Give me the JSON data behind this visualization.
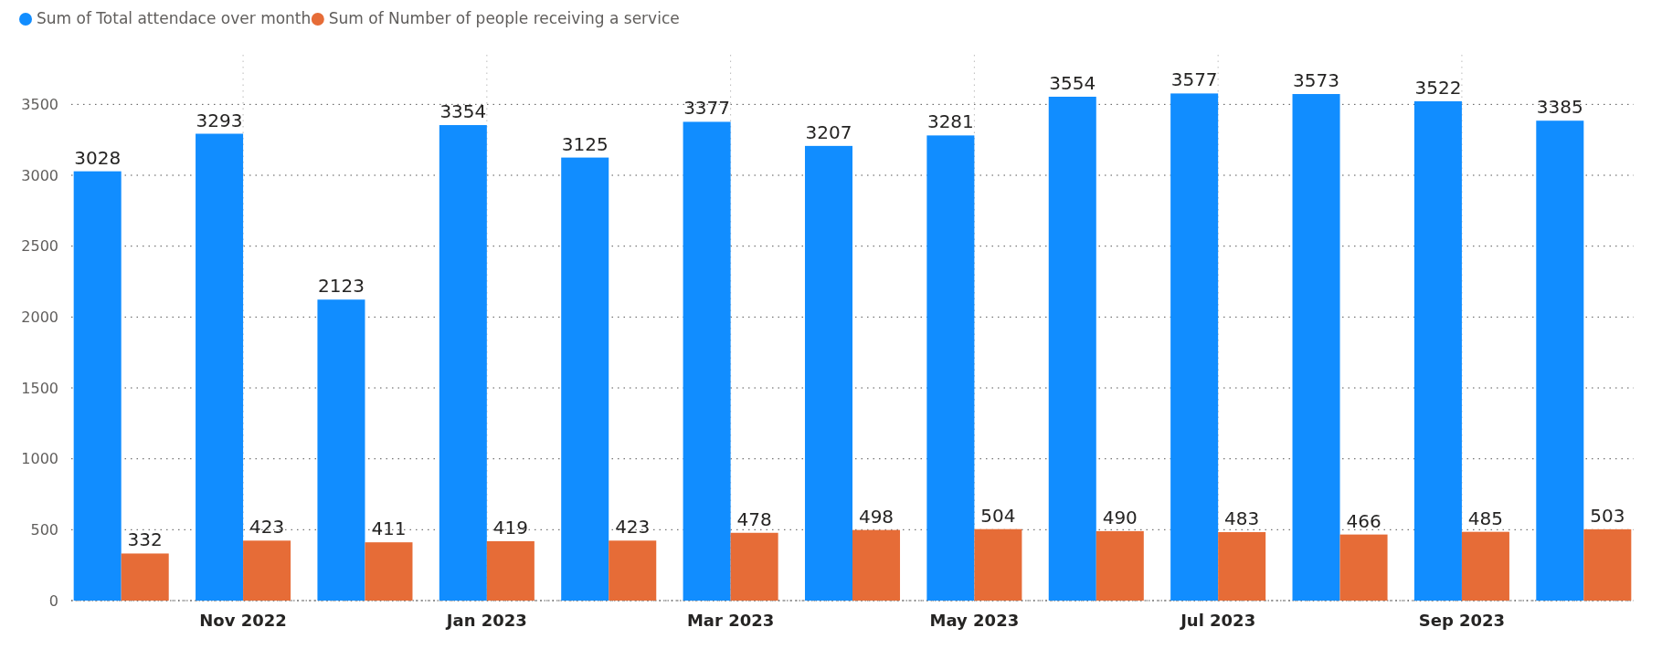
{
  "chart_data": {
    "type": "bar",
    "categories": [
      null,
      "Nov 2022",
      null,
      "Jan 2023",
      null,
      "Mar 2023",
      null,
      "May 2023",
      null,
      "Jul 2023",
      null,
      "Sep 2023",
      null
    ],
    "series": [
      {
        "name": "Sum of Total attendace over month",
        "color": "#118dff",
        "values": [
          3028,
          3293,
          2123,
          3354,
          3125,
          3377,
          3207,
          3281,
          3554,
          3577,
          3573,
          3522,
          3385
        ]
      },
      {
        "name": "Sum of Number of people receiving  a service",
        "color": "#e66c37",
        "values": [
          332,
          423,
          411,
          419,
          423,
          478,
          498,
          504,
          490,
          483,
          466,
          485,
          503
        ]
      }
    ],
    "ylim": [
      0,
      3850
    ],
    "yticks": [
      0,
      500,
      1000,
      1500,
      2000,
      2500,
      3000,
      3500
    ],
    "grid": true,
    "legend": "top left",
    "data_labels": true
  }
}
